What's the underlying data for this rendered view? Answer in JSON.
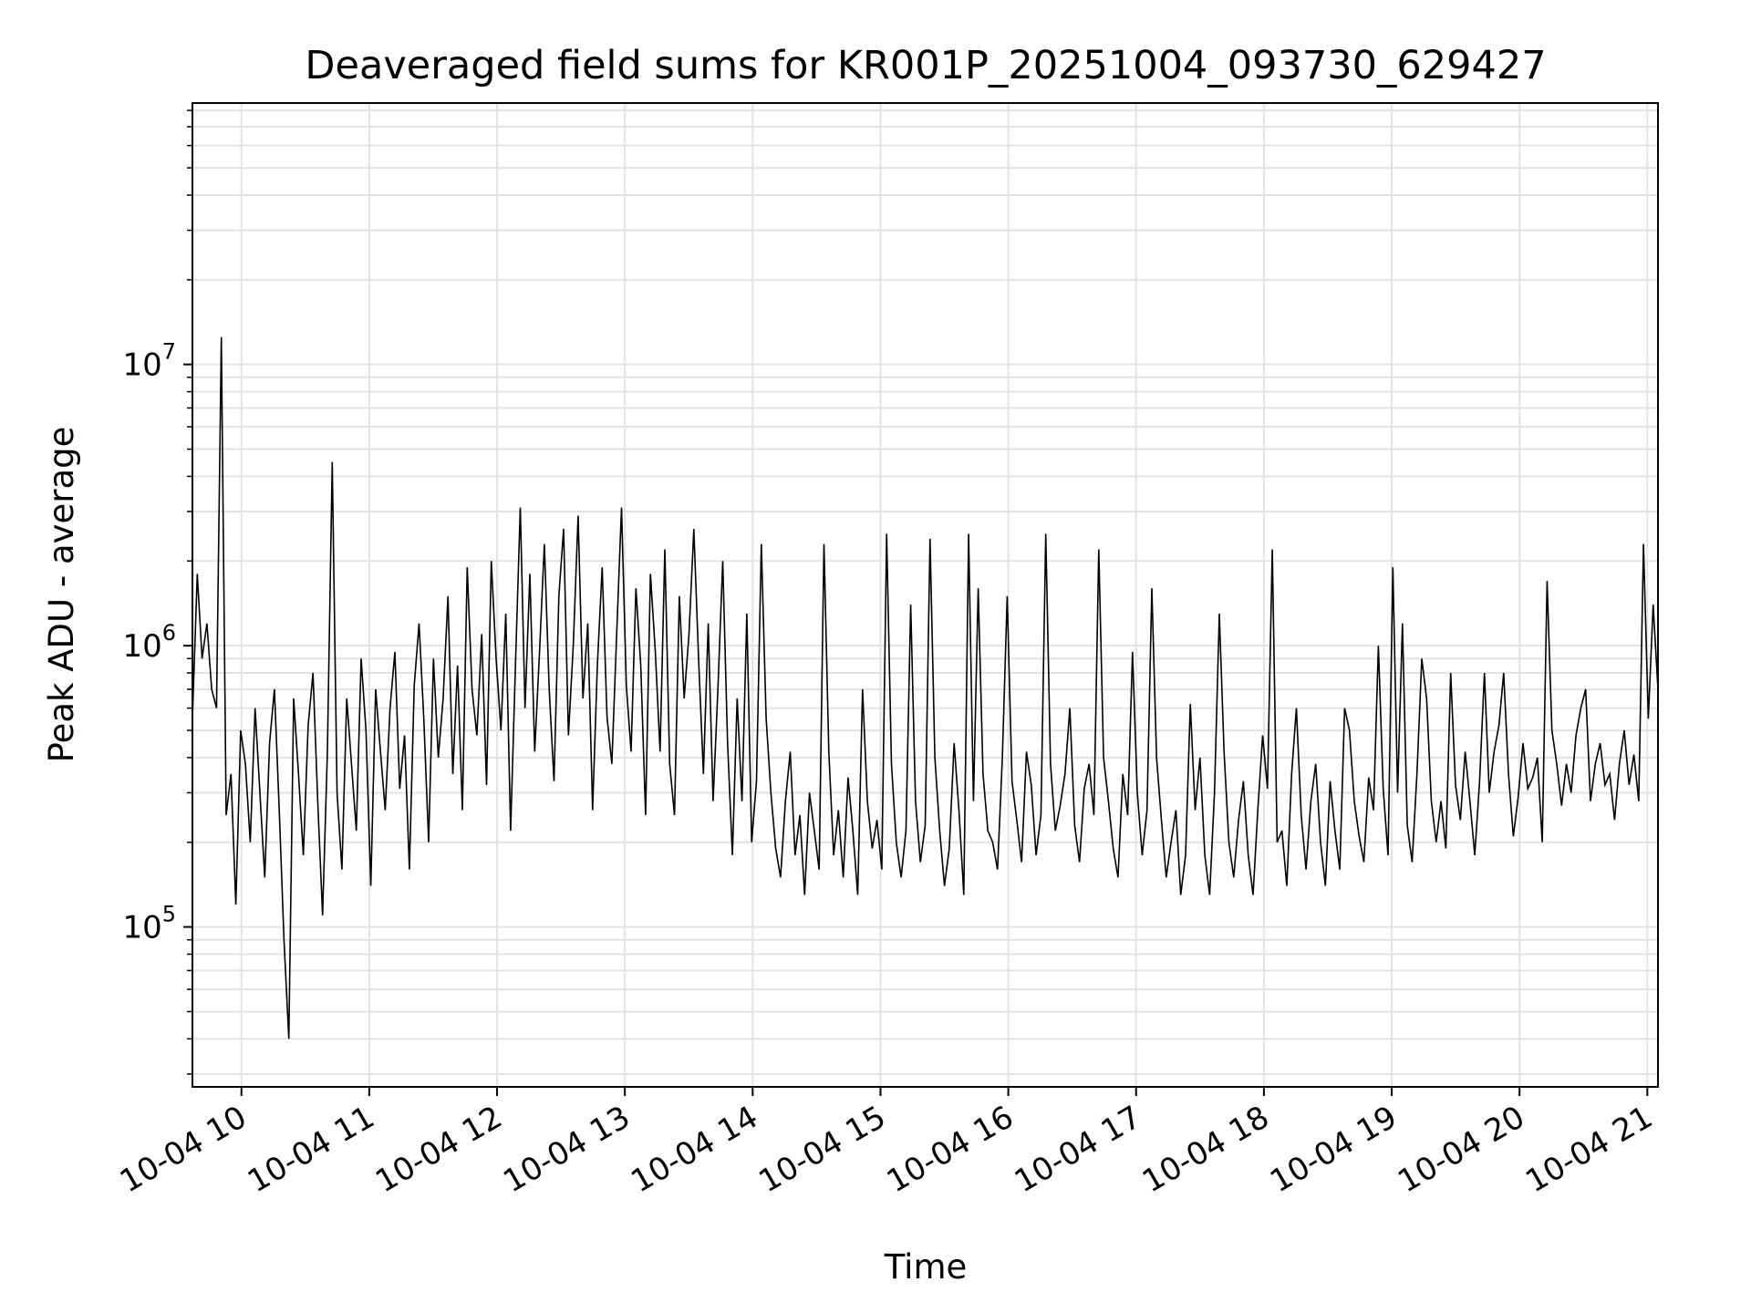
{
  "chart_data": {
    "type": "line",
    "title": "Deaveraged field sums for KR001P_20251004_093730_629427",
    "xlabel": "Time",
    "ylabel": "Peak ADU - average",
    "yscale": "log",
    "xlim": [
      "10-04 09:37",
      "10-04 21:05"
    ],
    "ylim": [
      27000,
      85000000
    ],
    "x_tick_labels": [
      "10-04 10",
      "10-04 11",
      "10-04 12",
      "10-04 13",
      "10-04 14",
      "10-04 15",
      "10-04 16",
      "10-04 17",
      "10-04 18",
      "10-04 19",
      "10-04 20",
      "10-04 21"
    ],
    "y_ticks": [
      {
        "value": 100000,
        "base": "10",
        "exp": "5"
      },
      {
        "value": 1000000,
        "base": "10",
        "exp": "6"
      },
      {
        "value": 10000000,
        "base": "10",
        "exp": "7"
      }
    ],
    "grid": true,
    "line_color": "#000000",
    "series": [
      {
        "x_start": "10-04 09:37",
        "x_end": "10-04 21:05",
        "values": [
          550000,
          1800000,
          900000,
          1200000,
          700000,
          600000,
          12500000,
          250000,
          350000,
          120000,
          500000,
          380000,
          200000,
          600000,
          300000,
          150000,
          450000,
          700000,
          260000,
          90000,
          40000,
          650000,
          350000,
          180000,
          520000,
          800000,
          280000,
          110000,
          420000,
          4500000,
          300000,
          160000,
          650000,
          380000,
          220000,
          900000,
          500000,
          140000,
          700000,
          420000,
          260000,
          600000,
          950000,
          310000,
          480000,
          160000,
          720000,
          1200000,
          550000,
          200000,
          900000,
          400000,
          650000,
          1500000,
          350000,
          850000,
          260000,
          1900000,
          700000,
          480000,
          1100000,
          320000,
          2000000,
          900000,
          500000,
          1300000,
          220000,
          850000,
          3100000,
          600000,
          1800000,
          420000,
          950000,
          2300000,
          700000,
          330000,
          1500000,
          2600000,
          480000,
          1000000,
          2900000,
          650000,
          1200000,
          260000,
          850000,
          1900000,
          560000,
          380000,
          1100000,
          3100000,
          720000,
          420000,
          1600000,
          850000,
          250000,
          1800000,
          960000,
          420000,
          2200000,
          380000,
          250000,
          1500000,
          650000,
          1100000,
          2600000,
          900000,
          350000,
          1200000,
          280000,
          700000,
          2000000,
          450000,
          180000,
          650000,
          280000,
          1300000,
          200000,
          330000,
          2300000,
          550000,
          300000,
          190000,
          150000,
          280000,
          420000,
          180000,
          250000,
          130000,
          300000,
          220000,
          160000,
          2300000,
          420000,
          180000,
          260000,
          150000,
          340000,
          220000,
          130000,
          700000,
          280000,
          190000,
          240000,
          160000,
          2500000,
          380000,
          200000,
          150000,
          220000,
          1400000,
          280000,
          170000,
          230000,
          2400000,
          400000,
          220000,
          140000,
          190000,
          450000,
          260000,
          130000,
          2500000,
          280000,
          1600000,
          350000,
          220000,
          200000,
          160000,
          400000,
          1500000,
          330000,
          240000,
          170000,
          420000,
          320000,
          180000,
          250000,
          2500000,
          380000,
          220000,
          270000,
          350000,
          600000,
          230000,
          170000,
          310000,
          380000,
          250000,
          2200000,
          400000,
          280000,
          190000,
          150000,
          350000,
          250000,
          950000,
          300000,
          180000,
          260000,
          1600000,
          400000,
          240000,
          150000,
          200000,
          260000,
          130000,
          180000,
          620000,
          260000,
          400000,
          180000,
          130000,
          300000,
          1300000,
          420000,
          200000,
          150000,
          240000,
          330000,
          180000,
          130000,
          260000,
          480000,
          310000,
          2200000,
          200000,
          220000,
          140000,
          350000,
          600000,
          250000,
          160000,
          280000,
          380000,
          200000,
          140000,
          330000,
          220000,
          160000,
          600000,
          500000,
          280000,
          210000,
          170000,
          340000,
          260000,
          1000000,
          310000,
          180000,
          1900000,
          300000,
          1200000,
          230000,
          170000,
          350000,
          900000,
          650000,
          280000,
          200000,
          280000,
          190000,
          800000,
          320000,
          240000,
          420000,
          280000,
          180000,
          330000,
          800000,
          300000,
          420000,
          520000,
          800000,
          350000,
          210000,
          290000,
          450000,
          310000,
          340000,
          400000,
          200000,
          1700000,
          500000,
          380000,
          270000,
          380000,
          300000,
          480000,
          600000,
          700000,
          280000,
          380000,
          450000,
          320000,
          350000,
          240000,
          380000,
          500000,
          320000,
          410000,
          280000,
          2300000,
          550000,
          1400000,
          700000
        ]
      }
    ]
  }
}
